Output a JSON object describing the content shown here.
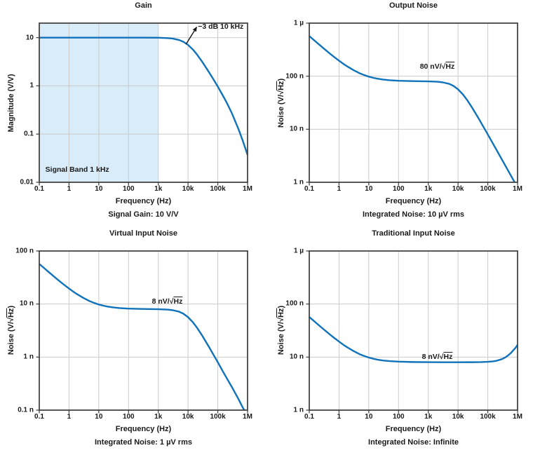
{
  "style": {
    "curve_color": "#0f72ba",
    "grid_color": "#cbcbcb",
    "border_color": "#3a3a3a",
    "band_color": "#d9ecf9",
    "text_color": "#1a1a1a",
    "arrow_color": "#1a1a1a"
  },
  "chart_data": [
    {
      "id": "gain",
      "type": "line",
      "title": "Gain",
      "xlabel": "Frequency (Hz)",
      "ylabel": {
        "pre": "Magnitude (V/V)",
        "bar": "",
        "post": ""
      },
      "caption": "Signal Gain: 10 V/V",
      "xlim": [
        0.1,
        1000000
      ],
      "ylim": [
        0.01,
        20
      ],
      "x_ticks": [
        [
          0.1,
          "0.1"
        ],
        [
          1,
          "1"
        ],
        [
          10,
          "10"
        ],
        [
          100,
          "100"
        ],
        [
          1000,
          "1k"
        ],
        [
          10000,
          "10k"
        ],
        [
          100000,
          "100k"
        ],
        [
          1000000,
          "1M"
        ]
      ],
      "y_ticks": [
        [
          10,
          "10"
        ],
        [
          1,
          "1"
        ],
        [
          0.1,
          "0.1"
        ],
        [
          0.01,
          "0.01"
        ]
      ],
      "band": {
        "from": 0.1,
        "to": 1000
      },
      "annotations": [
        {
          "pre": "−3 dB 10 kHz",
          "bar": "",
          "x": 21500,
          "y": 17,
          "anchor": "start",
          "arrow": {
            "from": [
              8500,
              7.3
            ],
            "to": [
              19500,
              16.5
            ]
          }
        },
        {
          "pre": "Signal Band 1 kHz",
          "bar": "",
          "x": 0.16,
          "y": 0.018,
          "anchor": "start"
        }
      ],
      "series": [
        {
          "name": "gain",
          "points": [
            [
              0.1,
              10
            ],
            [
              1,
              10
            ],
            [
              10,
              10
            ],
            [
              100,
              10
            ],
            [
              300,
              10
            ],
            [
              1000,
              9.95
            ],
            [
              2000,
              9.81
            ],
            [
              3000,
              9.58
            ],
            [
              5000,
              8.94
            ],
            [
              7000,
              8.19
            ],
            [
              10000,
              7.07
            ],
            [
              15000,
              5.55
            ],
            [
              20000,
              4.46
            ],
            [
              30000,
              3.15
            ],
            [
              50000,
              1.94
            ],
            [
              70000,
              1.39
            ],
            [
              100000,
              0.965
            ],
            [
              150000,
              0.62
            ],
            [
              200000,
              0.447
            ],
            [
              300000,
              0.267
            ],
            [
              500000,
              0.125
            ],
            [
              700000,
              0.071
            ],
            [
              1000000,
              0.037
            ]
          ]
        }
      ]
    },
    {
      "id": "output-noise",
      "type": "line",
      "title": "Output Noise",
      "xlabel": "Frequency (Hz)",
      "ylabel": {
        "pre": "Noise (V/√",
        "bar": "Hz",
        "post": ")"
      },
      "caption": "Integrated Noise: 10 µV rms",
      "y_unit": "nV",
      "xlim": [
        0.1,
        1000000
      ],
      "ylim": [
        1,
        1000
      ],
      "x_ticks": [
        [
          0.1,
          "0.1"
        ],
        [
          1,
          "1"
        ],
        [
          10,
          "10"
        ],
        [
          100,
          "100"
        ],
        [
          1000,
          "1k"
        ],
        [
          10000,
          "10k"
        ],
        [
          100000,
          "100k"
        ],
        [
          1000000,
          "1M"
        ]
      ],
      "y_ticks": [
        [
          1000,
          "1 µ"
        ],
        [
          100,
          "100 n"
        ],
        [
          10,
          "10 n"
        ],
        [
          1,
          "1 n"
        ]
      ],
      "annotations": [
        {
          "pre": "80 nV/√",
          "bar": "Hz",
          "x": 2000,
          "y": 150,
          "anchor": "middle"
        }
      ],
      "series": [
        {
          "name": "output noise (nV/√Hz)",
          "points": [
            [
              0.1,
              570
            ],
            [
              0.15,
              469
            ],
            [
              0.2,
              408
            ],
            [
              0.3,
              336
            ],
            [
              0.5,
              265
            ],
            [
              0.7,
              228
            ],
            [
              1,
              196
            ],
            [
              1.5,
              166
            ],
            [
              2,
              150
            ],
            [
              3,
              131
            ],
            [
              5,
              113
            ],
            [
              7,
              105
            ],
            [
              10,
              98
            ],
            [
              15,
              92.4
            ],
            [
              20,
              89.4
            ],
            [
              30,
              86.4
            ],
            [
              50,
              83.9
            ],
            [
              100,
              82
            ],
            [
              300,
              80.7
            ],
            [
              1000,
              79.9
            ],
            [
              2000,
              78.6
            ],
            [
              3000,
              76.7
            ],
            [
              5000,
              71.7
            ],
            [
              7000,
              65.6
            ],
            [
              10000,
              56.6
            ],
            [
              15000,
              44.4
            ],
            [
              20000,
              35.8
            ],
            [
              30000,
              25.3
            ],
            [
              50000,
              15.7
            ],
            [
              70000,
              11.3
            ],
            [
              100000,
              7.96
            ],
            [
              150000,
              5.32
            ],
            [
              200000,
              4.0
            ],
            [
              300000,
              2.66
            ],
            [
              500000,
              1.6
            ],
            [
              700000,
              1.14
            ],
            [
              1000000,
              0.8
            ]
          ]
        }
      ]
    },
    {
      "id": "virtual-input-noise",
      "type": "line",
      "title": "Virtual Input Noise",
      "xlabel": "Frequency (Hz)",
      "ylabel": {
        "pre": "Noise (V/√",
        "bar": "Hz",
        "post": ")"
      },
      "caption": "Integrated Noise: 1 µV rms",
      "y_unit": "nV",
      "xlim": [
        0.1,
        1000000
      ],
      "ylim": [
        0.1,
        100
      ],
      "x_ticks": [
        [
          0.1,
          "0.1"
        ],
        [
          1,
          "1"
        ],
        [
          10,
          "10"
        ],
        [
          100,
          "100"
        ],
        [
          1000,
          "1k"
        ],
        [
          10000,
          "10k"
        ],
        [
          100000,
          "100k"
        ],
        [
          1000000,
          "1M"
        ]
      ],
      "y_ticks": [
        [
          100,
          "100 n"
        ],
        [
          10,
          "10 n"
        ],
        [
          1,
          "1 n"
        ],
        [
          0.1,
          "0.1 n"
        ]
      ],
      "annotations": [
        {
          "pre": "8 nV/√",
          "bar": "Hz",
          "x": 2000,
          "y": 11,
          "anchor": "middle"
        }
      ],
      "series": [
        {
          "name": "virtual input noise (nV/√Hz)",
          "points": [
            [
              0.1,
              57
            ],
            [
              0.15,
              46.9
            ],
            [
              0.2,
              40.8
            ],
            [
              0.3,
              33.6
            ],
            [
              0.5,
              26.5
            ],
            [
              0.7,
              22.8
            ],
            [
              1,
              19.6
            ],
            [
              1.5,
              16.6
            ],
            [
              2,
              15.0
            ],
            [
              3,
              13.1
            ],
            [
              5,
              11.3
            ],
            [
              7,
              10.5
            ],
            [
              10,
              9.8
            ],
            [
              15,
              9.24
            ],
            [
              20,
              8.94
            ],
            [
              30,
              8.64
            ],
            [
              50,
              8.39
            ],
            [
              100,
              8.2
            ],
            [
              300,
              8.07
            ],
            [
              1000,
              7.99
            ],
            [
              2000,
              7.86
            ],
            [
              3000,
              7.67
            ],
            [
              5000,
              7.17
            ],
            [
              7000,
              6.56
            ],
            [
              10000,
              5.66
            ],
            [
              15000,
              4.44
            ],
            [
              20000,
              3.58
            ],
            [
              30000,
              2.53
            ],
            [
              50000,
              1.57
            ],
            [
              70000,
              1.13
            ],
            [
              100000,
              0.8
            ],
            [
              150000,
              0.53
            ],
            [
              200000,
              0.4
            ],
            [
              300000,
              0.27
            ],
            [
              500000,
              0.16
            ],
            [
              700000,
              0.11
            ],
            [
              1000000,
              0.08
            ]
          ]
        }
      ]
    },
    {
      "id": "traditional-input-noise",
      "type": "line",
      "title": "Traditional Input Noise",
      "xlabel": "Frequency (Hz)",
      "ylabel": {
        "pre": "Noise (V/√",
        "bar": "Hz",
        "post": ")"
      },
      "caption": "Integrated Noise: Infinite",
      "y_unit": "nV",
      "xlim": [
        0.1,
        1000000
      ],
      "ylim": [
        1,
        1000
      ],
      "x_ticks": [
        [
          0.1,
          "0.1"
        ],
        [
          1,
          "1"
        ],
        [
          10,
          "10"
        ],
        [
          100,
          "100"
        ],
        [
          1000,
          "1k"
        ],
        [
          10000,
          "10k"
        ],
        [
          100000,
          "100k"
        ],
        [
          1000000,
          "1M"
        ]
      ],
      "y_ticks": [
        [
          1000,
          "1 µ"
        ],
        [
          100,
          "100 n"
        ],
        [
          10,
          "10 n"
        ],
        [
          1,
          "1 n"
        ]
      ],
      "annotations": [
        {
          "pre": "8 nV/√",
          "bar": "Hz",
          "x": 2000,
          "y": 9.8,
          "anchor": "middle"
        }
      ],
      "series": [
        {
          "name": "traditional input noise (nV/√Hz)",
          "points": [
            [
              0.1,
              57
            ],
            [
              0.15,
              46.9
            ],
            [
              0.2,
              40.8
            ],
            [
              0.3,
              33.6
            ],
            [
              0.5,
              26.5
            ],
            [
              0.7,
              22.8
            ],
            [
              1,
              19.6
            ],
            [
              1.5,
              16.6
            ],
            [
              2,
              15.0
            ],
            [
              3,
              13.1
            ],
            [
              5,
              11.3
            ],
            [
              7,
              10.5
            ],
            [
              10,
              9.8
            ],
            [
              15,
              9.24
            ],
            [
              20,
              8.94
            ],
            [
              30,
              8.64
            ],
            [
              50,
              8.39
            ],
            [
              100,
              8.2
            ],
            [
              300,
              8.07
            ],
            [
              1000,
              8.02
            ],
            [
              3000,
              8.0
            ],
            [
              10000,
              8.0
            ],
            [
              30000,
              8.01
            ],
            [
              60000,
              8.05
            ],
            [
              100000,
              8.14
            ],
            [
              150000,
              8.31
            ],
            [
              200000,
              8.54
            ],
            [
              300000,
              9.17
            ],
            [
              400000,
              9.96
            ],
            [
              500000,
              10.95
            ],
            [
              600000,
              11.98
            ],
            [
              700000,
              13.2
            ],
            [
              850000,
              14.9
            ],
            [
              1000000,
              17.0
            ]
          ]
        }
      ]
    }
  ]
}
